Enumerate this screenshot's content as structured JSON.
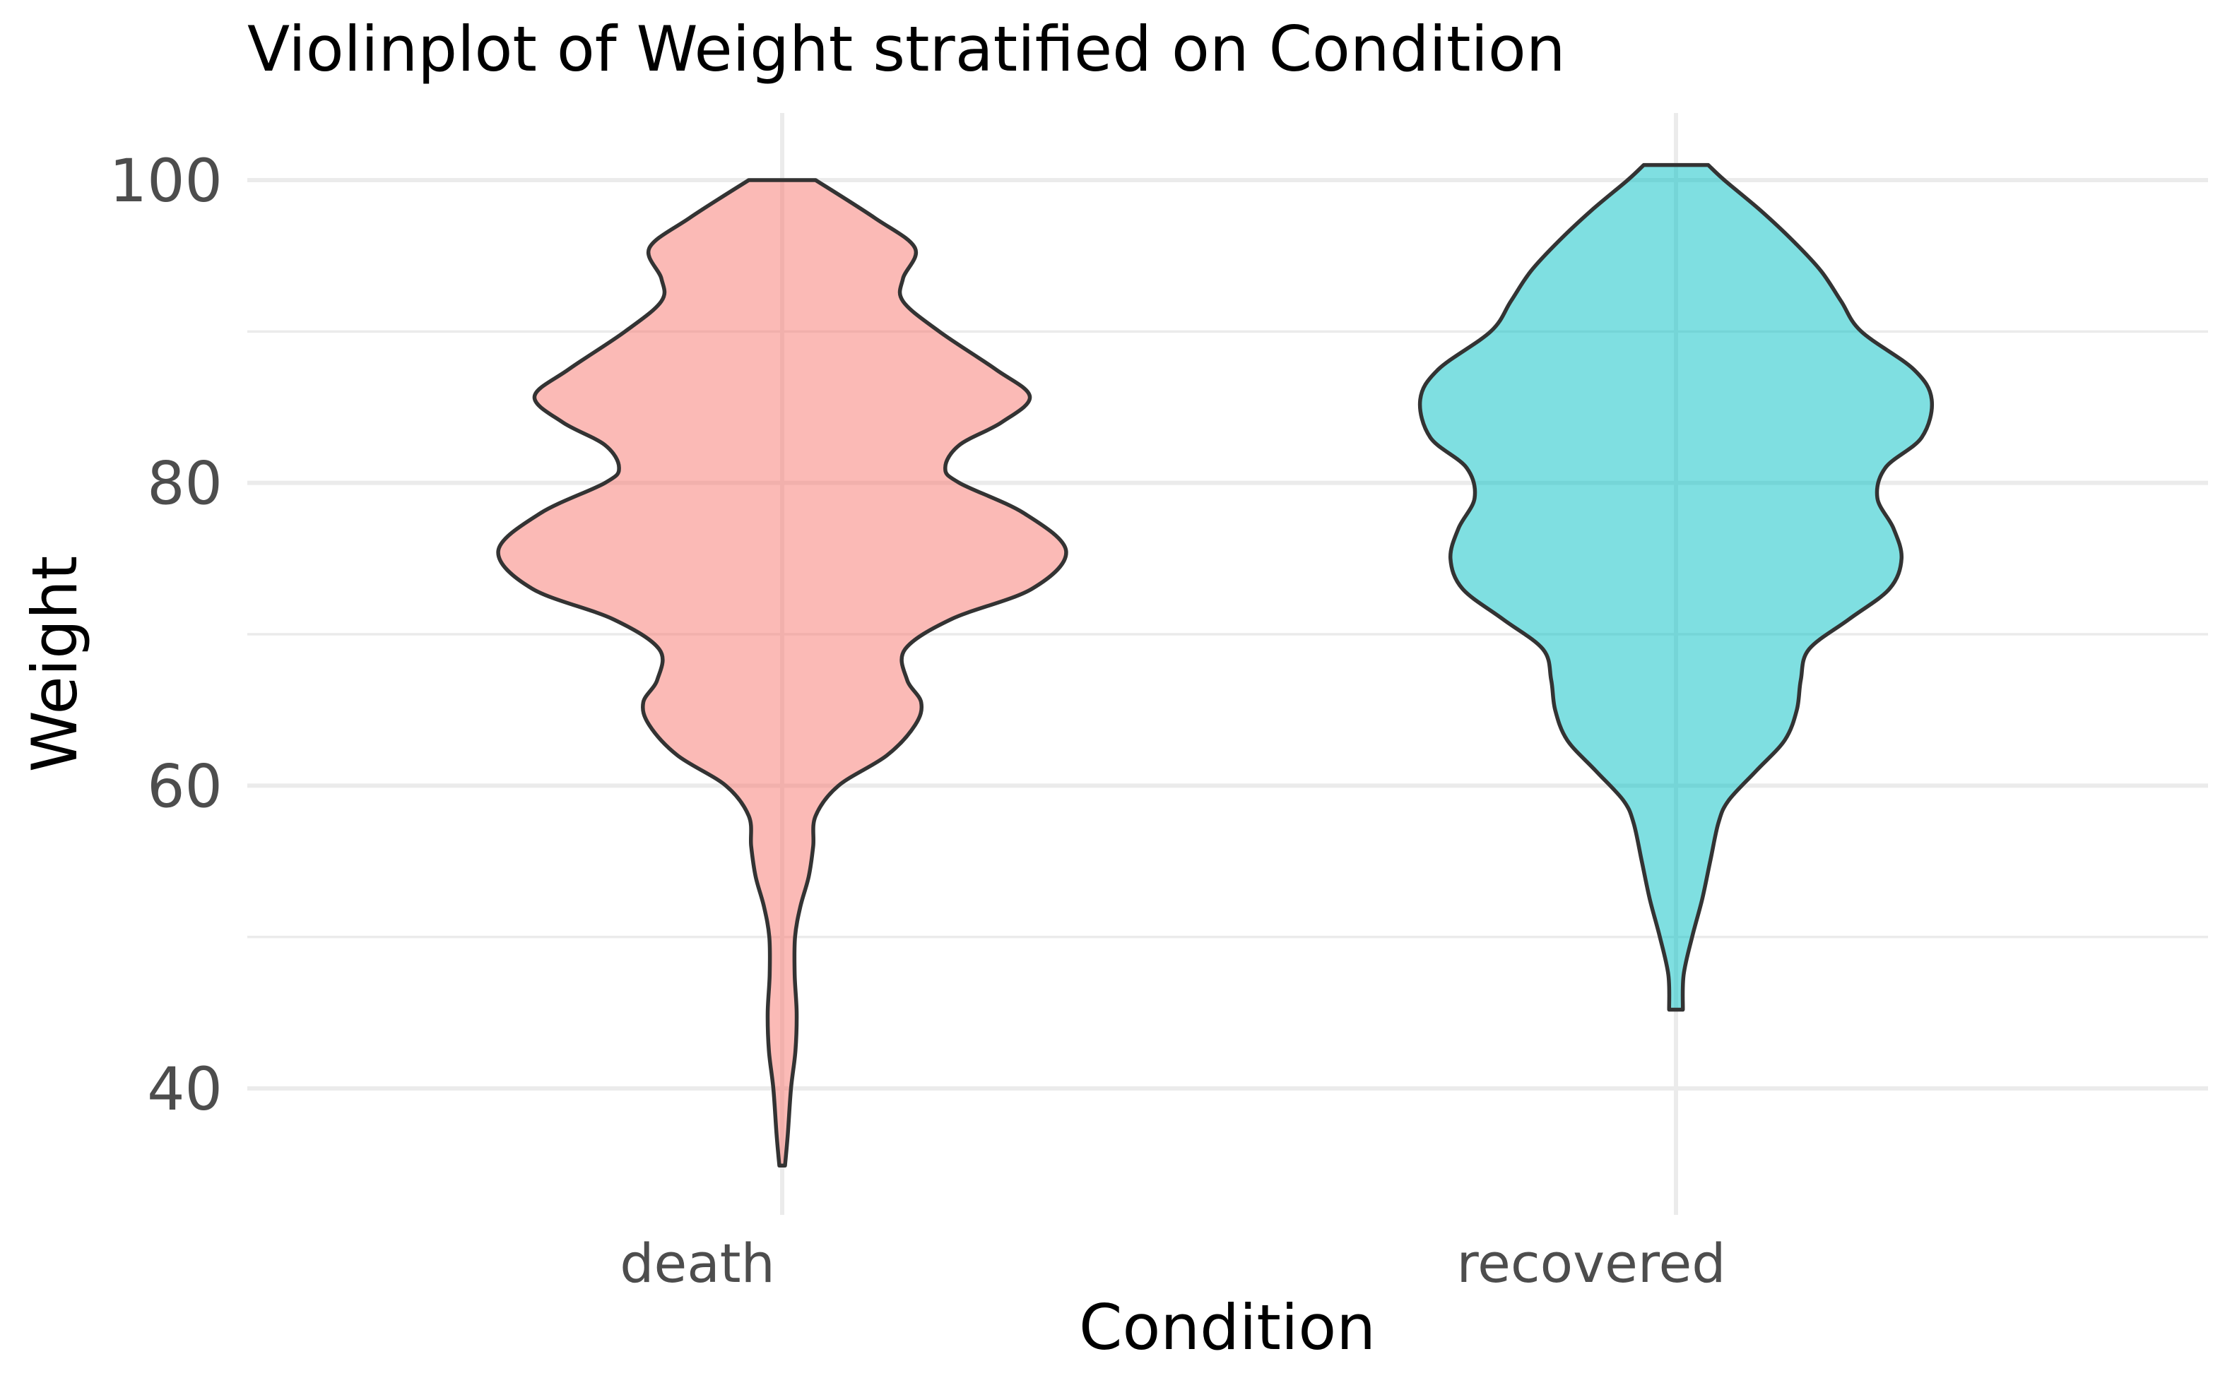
{
  "chart_data": {
    "type": "violin",
    "title": "Violinplot of Weight stratified on Condition",
    "xlabel": "Condition",
    "ylabel": "Weight",
    "ylim": [
      32,
      105
    ],
    "yticks": [
      40,
      60,
      80,
      100
    ],
    "y_minor_grid": [
      50,
      70,
      90
    ],
    "grid": true,
    "legend": "none",
    "categories": [
      "death",
      "recovered"
    ],
    "series": [
      {
        "category": "death",
        "color": "#F8766D",
        "min": 34.9,
        "max": 100,
        "density": [
          [
            34.9,
            0.007
          ],
          [
            37,
            0.014
          ],
          [
            40,
            0.022
          ],
          [
            42.5,
            0.033
          ],
          [
            45,
            0.036
          ],
          [
            47.5,
            0.031
          ],
          [
            50,
            0.032
          ],
          [
            52,
            0.045
          ],
          [
            54,
            0.066
          ],
          [
            56,
            0.077
          ],
          [
            58,
            0.083
          ],
          [
            60,
            0.14
          ],
          [
            62,
            0.26
          ],
          [
            64,
            0.33
          ],
          [
            65.5,
            0.345
          ],
          [
            67,
            0.31
          ],
          [
            69,
            0.305
          ],
          [
            71,
            0.42
          ],
          [
            73,
            0.62
          ],
          [
            75.5,
            0.705
          ],
          [
            78,
            0.6
          ],
          [
            80,
            0.44
          ],
          [
            81,
            0.405
          ],
          [
            82.5,
            0.44
          ],
          [
            84,
            0.545
          ],
          [
            85.7,
            0.615
          ],
          [
            87.5,
            0.53
          ],
          [
            90,
            0.39
          ],
          [
            92,
            0.3
          ],
          [
            93.5,
            0.3
          ],
          [
            95.5,
            0.33
          ],
          [
            97.5,
            0.23
          ],
          [
            100,
            0.083
          ]
        ]
      },
      {
        "category": "recovered",
        "color": "#00BFC4",
        "min": 45.2,
        "max": 101,
        "density": [
          [
            45.2,
            0.017
          ],
          [
            47.5,
            0.019
          ],
          [
            50,
            0.04
          ],
          [
            52.5,
            0.065
          ],
          [
            55,
            0.085
          ],
          [
            57.5,
            0.105
          ],
          [
            59,
            0.13
          ],
          [
            61,
            0.2
          ],
          [
            63,
            0.27
          ],
          [
            65,
            0.3
          ],
          [
            67,
            0.31
          ],
          [
            69,
            0.33
          ],
          [
            71,
            0.43
          ],
          [
            73,
            0.53
          ],
          [
            75,
            0.56
          ],
          [
            77,
            0.54
          ],
          [
            79,
            0.5
          ],
          [
            81,
            0.52
          ],
          [
            83,
            0.61
          ],
          [
            85.5,
            0.635
          ],
          [
            87.5,
            0.59
          ],
          [
            90,
            0.46
          ],
          [
            92,
            0.41
          ],
          [
            94,
            0.36
          ],
          [
            96,
            0.29
          ],
          [
            98,
            0.21
          ],
          [
            100,
            0.12
          ],
          [
            101,
            0.08
          ]
        ]
      }
    ]
  }
}
